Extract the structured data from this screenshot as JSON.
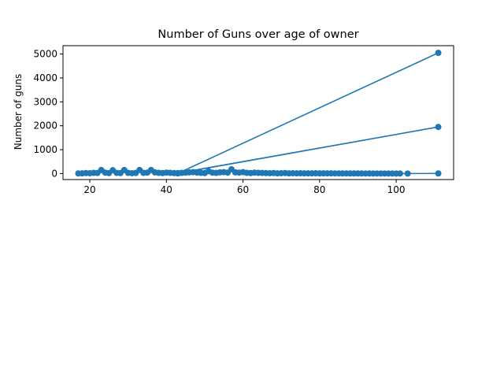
{
  "chart_data": {
    "type": "line",
    "title": "Number of Guns over age of owner",
    "xlabel": "",
    "ylabel": "Number of guns",
    "xlim": [
      13,
      115
    ],
    "ylim": [
      -250,
      5350
    ],
    "x_ticks": [
      20,
      40,
      60,
      80,
      100
    ],
    "y_ticks": [
      0,
      1000,
      2000,
      3000,
      4000,
      5000
    ],
    "grid": false,
    "legend": false,
    "series_color": "#1f77b4",
    "series": [
      {
        "x": [
          17,
          18,
          19,
          20,
          21,
          22,
          23,
          24,
          25,
          26,
          27,
          28,
          29,
          30,
          31,
          32,
          33,
          34,
          35,
          36,
          37,
          38,
          39,
          40,
          41,
          42,
          43,
          111,
          43,
          111,
          43,
          44,
          45,
          46,
          47,
          48,
          49,
          50,
          51,
          52,
          53,
          54,
          55,
          56,
          57,
          58,
          59,
          60,
          61,
          62,
          63,
          64,
          65,
          66,
          67,
          68,
          69,
          70,
          71,
          72,
          73,
          74,
          75,
          76,
          77,
          78,
          79,
          80,
          81,
          82,
          83,
          84,
          85,
          86,
          87,
          88,
          89,
          90,
          91,
          92,
          93,
          94,
          95,
          96,
          97,
          98,
          99,
          100,
          101,
          103,
          111
        ],
        "y": [
          5,
          10,
          20,
          15,
          30,
          25,
          150,
          40,
          20,
          140,
          30,
          20,
          150,
          30,
          15,
          25,
          150,
          30,
          40,
          150,
          50,
          30,
          20,
          40,
          30,
          20,
          10,
          5050,
          10,
          1950,
          20,
          30,
          40,
          50,
          60,
          40,
          30,
          20,
          100,
          40,
          30,
          50,
          60,
          40,
          180,
          50,
          40,
          60,
          30,
          20,
          40,
          30,
          25,
          20,
          15,
          20,
          10,
          15,
          20,
          10,
          15,
          10,
          12,
          10,
          8,
          10,
          12,
          8,
          10,
          9,
          8,
          7,
          6,
          5,
          6,
          5,
          4,
          5,
          4,
          3,
          4,
          3,
          2,
          3,
          2,
          2,
          2,
          1,
          2,
          1,
          5
        ]
      }
    ]
  }
}
